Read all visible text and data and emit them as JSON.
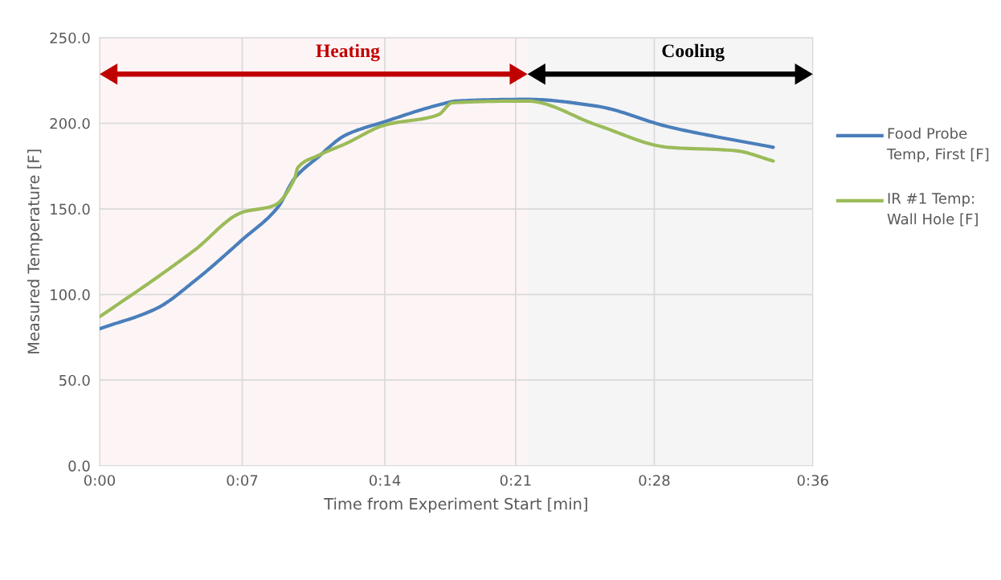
{
  "chart_data": {
    "type": "line",
    "xlabel": "Time from Experiment Start [min]",
    "ylabel": "Measured Temperature [F]",
    "xlim": [
      0,
      36
    ],
    "ylim": [
      0,
      250
    ],
    "xticks": [
      {
        "value": 0,
        "label": "0:00"
      },
      {
        "value": 7.2,
        "label": "0:07"
      },
      {
        "value": 14.4,
        "label": "0:14"
      },
      {
        "value": 21,
        "label": "0:21"
      },
      {
        "value": 28,
        "label": "0:28"
      },
      {
        "value": 36,
        "label": "0:36"
      }
    ],
    "yticks": [
      {
        "value": 0,
        "label": "0.0"
      },
      {
        "value": 50,
        "label": "50.0"
      },
      {
        "value": 100,
        "label": "100.0"
      },
      {
        "value": 150,
        "label": "150.0"
      },
      {
        "value": 200,
        "label": "200.0"
      },
      {
        "value": 250,
        "label": "250.0"
      }
    ],
    "grid": true,
    "legend": "right",
    "marker": "none",
    "line_style": "solid",
    "series": [
      {
        "name": "Food Probe Temp, First [F]",
        "color": "#4a7ebb",
        "x": [
          0,
          2.9,
          4.8,
          7.2,
          9.0,
          9.85,
          11.0,
          12.4,
          14.4,
          17.2,
          18.0,
          21.6,
          25.1,
          28.7,
          34.0
        ],
        "values": [
          80,
          92,
          108,
          132,
          151,
          168,
          180,
          193,
          201,
          211,
          213,
          214,
          210,
          198,
          186
        ]
      },
      {
        "name": "IR #1 Temp: Wall Hole [F]",
        "color": "#9bbb59",
        "x": [
          0,
          2.9,
          4.8,
          7.2,
          8.8,
          9.85,
          10.0,
          11.0,
          12.4,
          14.4,
          17.1,
          17.8,
          21.6,
          25.1,
          28.7,
          32.1,
          34.0
        ],
        "values": [
          87,
          110,
          126,
          148,
          152,
          168,
          174,
          181,
          188,
          199,
          205,
          212,
          213,
          199,
          186,
          184,
          178
        ]
      }
    ],
    "bands": [
      {
        "axis": "x",
        "from": 0,
        "to": 21.6,
        "label": "Heating",
        "color": "#c00000"
      },
      {
        "axis": "x",
        "from": 21.6,
        "to": 36,
        "label": "Cooling",
        "color": "#000000"
      }
    ]
  }
}
